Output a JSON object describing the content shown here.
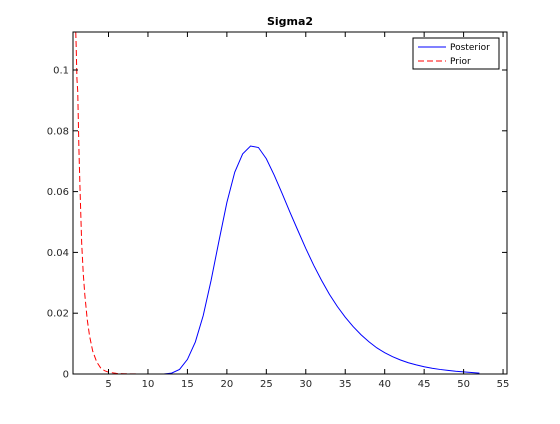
{
  "chart_data": {
    "type": "line",
    "title": "Sigma2",
    "xlabel": "",
    "ylabel": "",
    "xlim": [
      0.5,
      55.5
    ],
    "ylim": [
      0,
      0.1125
    ],
    "x_ticks": [
      5,
      10,
      15,
      20,
      25,
      30,
      35,
      40,
      45,
      50,
      55
    ],
    "x_tick_labels": [
      "5",
      "10",
      "15",
      "20",
      "25",
      "30",
      "35",
      "40",
      "45",
      "50",
      "55"
    ],
    "y_ticks": [
      0,
      0.02,
      0.04,
      0.06,
      0.08,
      0.1
    ],
    "y_tick_labels": [
      "0",
      "0.02",
      "0.04",
      "0.06",
      "0.08",
      "0.1"
    ],
    "grid": false,
    "legend": {
      "position": "top-right",
      "entries": [
        "Posterior",
        "Prior"
      ]
    },
    "series": [
      {
        "name": "Posterior",
        "style": "solid",
        "color": "#0000ff",
        "x": [
          12,
          13,
          14,
          15,
          16,
          17,
          18,
          19,
          20,
          21,
          22,
          23,
          24,
          25,
          26,
          27,
          28,
          29,
          30,
          31,
          32,
          33,
          34,
          35,
          36,
          37,
          38,
          39,
          40,
          41,
          42,
          43,
          44,
          45,
          46,
          47,
          48,
          49,
          50,
          51,
          52
        ],
        "y": [
          0.0,
          0.0003,
          0.0015,
          0.0048,
          0.0105,
          0.0192,
          0.0308,
          0.0438,
          0.0564,
          0.0664,
          0.0724,
          0.075,
          0.0745,
          0.0708,
          0.0654,
          0.0594,
          0.0532,
          0.0472,
          0.0413,
          0.0358,
          0.0308,
          0.0262,
          0.0222,
          0.0187,
          0.0156,
          0.0129,
          0.0106,
          0.0086,
          0.007,
          0.0057,
          0.0046,
          0.0037,
          0.003,
          0.0024,
          0.0019,
          0.0015,
          0.0012,
          0.0009,
          0.0007,
          0.0005,
          0.0003
        ]
      },
      {
        "name": "Prior",
        "style": "dashed",
        "color": "#ff0000",
        "x": [
          0.85,
          0.9,
          1.0,
          1.1,
          1.25,
          1.4,
          1.6,
          1.8,
          2.0,
          2.3,
          2.6,
          3.0,
          3.5,
          4.0,
          4.5,
          5.0,
          6.0,
          7.0,
          8.0,
          9.0,
          10.0,
          11.0,
          12.0,
          13.0
        ],
        "y": [
          0.1125,
          0.108,
          0.097,
          0.093,
          0.074,
          0.06,
          0.043,
          0.033,
          0.026,
          0.018,
          0.0125,
          0.0075,
          0.004,
          0.002,
          0.0011,
          0.0006,
          0.0002,
          8e-05,
          3e-05,
          1e-05,
          0.0,
          0.0,
          0.0,
          0.0
        ]
      }
    ]
  }
}
